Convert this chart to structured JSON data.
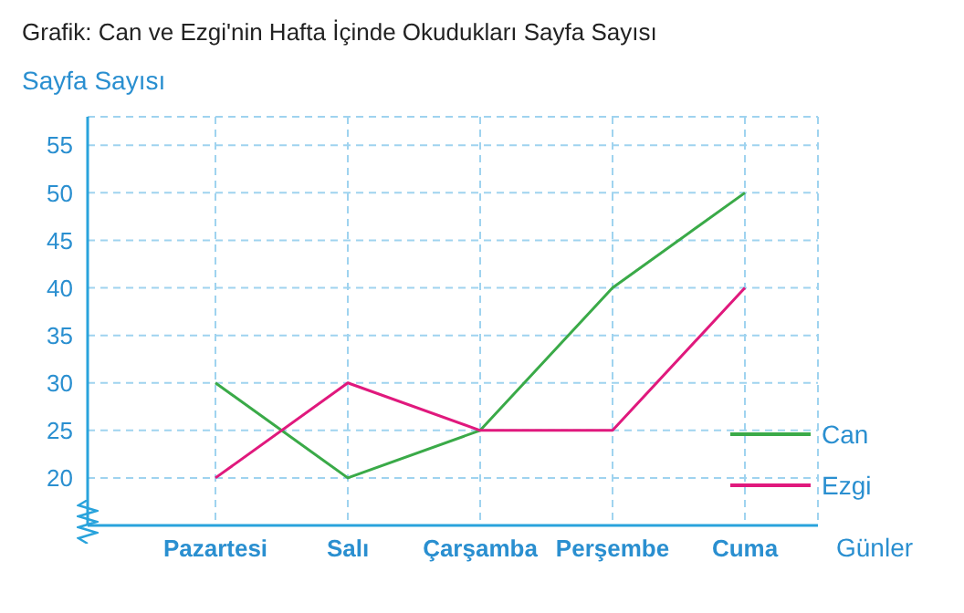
{
  "chart_data": {
    "type": "line",
    "title": "Grafik: Can ve Ezgi'nin Hafta İçinde Okudukları Sayfa Sayısı",
    "ylabel": "Sayfa Sayısı",
    "xlabel": "Günler",
    "categories": [
      "Pazartesi",
      "Salı",
      "Çarşamba",
      "Perşembe",
      "Cuma"
    ],
    "series": [
      {
        "name": "Can",
        "color": "#3aaa48",
        "values": [
          30,
          20,
          25,
          40,
          50
        ]
      },
      {
        "name": "Ezgi",
        "color": "#e0197d",
        "values": [
          20,
          30,
          25,
          25,
          40
        ]
      }
    ],
    "ylim": [
      15,
      58
    ],
    "yticks": [
      20,
      25,
      30,
      35,
      40,
      45,
      50,
      55
    ],
    "grid": true,
    "legend": "right",
    "marker": "none",
    "line_style": "solid"
  }
}
